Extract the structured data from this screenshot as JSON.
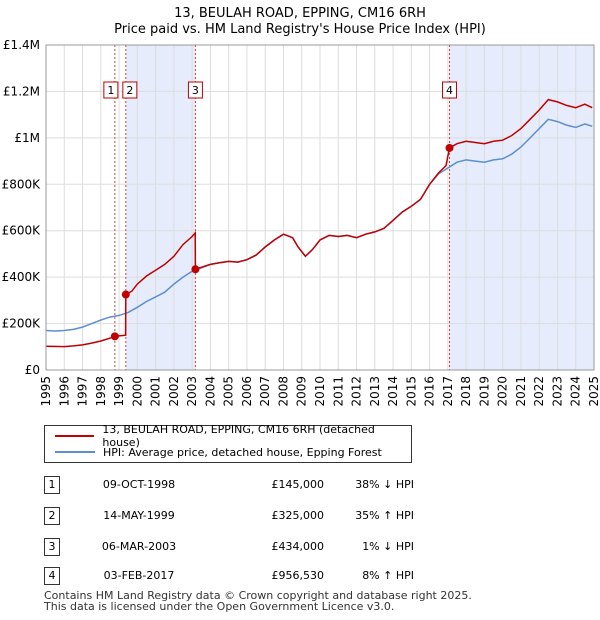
{
  "title": "13, BEULAH ROAD, EPPING, CM16 6RH",
  "subtitle": "Price paid vs. HM Land Registry's House Price Index (HPI)",
  "legend": {
    "property": "13, BEULAH ROAD, EPPING, CM16 6RH (detached house)",
    "hpi": "HPI: Average price, detached house, Epping Forest"
  },
  "colors": {
    "property": "#c00000",
    "hpi": "#5b8fd0",
    "shade": "#e6ecfb"
  },
  "transactions": [
    {
      "num": "1",
      "date": "09-OCT-1998",
      "price": "£145,000",
      "hpi": "38% ↓ HPI"
    },
    {
      "num": "2",
      "date": "14-MAY-1999",
      "price": "£325,000",
      "hpi": "35% ↑ HPI"
    },
    {
      "num": "3",
      "date": "06-MAR-2003",
      "price": "£434,000",
      "hpi": "1% ↓ HPI"
    },
    {
      "num": "4",
      "date": "03-FEB-2017",
      "price": "£956,530",
      "hpi": "8% ↑ HPI"
    }
  ],
  "footer": {
    "line1": "Contains HM Land Registry data © Crown copyright and database right 2025.",
    "line2": "This data is licensed under the Open Government Licence v3.0."
  },
  "chart_data": {
    "type": "line",
    "xlim": [
      1995,
      2025
    ],
    "ylim": [
      0,
      1400000
    ],
    "y_ticks": [
      {
        "value": 0,
        "label": "£0"
      },
      {
        "value": 200000,
        "label": "£200K"
      },
      {
        "value": 400000,
        "label": "£400K"
      },
      {
        "value": 600000,
        "label": "£600K"
      },
      {
        "value": 800000,
        "label": "£800K"
      },
      {
        "value": 1000000,
        "label": "£1M"
      },
      {
        "value": 1200000,
        "label": "£1.2M"
      },
      {
        "value": 1400000,
        "label": "£1.4M"
      }
    ],
    "x_ticks": [
      "1995",
      "1996",
      "1997",
      "1998",
      "1999",
      "2000",
      "2001",
      "2002",
      "2003",
      "2004",
      "2005",
      "2006",
      "2007",
      "2008",
      "2009",
      "2010",
      "2011",
      "2012",
      "2013",
      "2014",
      "2015",
      "2016",
      "2017",
      "2018",
      "2019",
      "2020",
      "2021",
      "2022",
      "2023",
      "2024",
      "2025"
    ],
    "shaded_ranges": [
      [
        1999.37,
        2003.18
      ],
      [
        2017.09,
        2025
      ]
    ],
    "markers": [
      {
        "label": "1",
        "x": 1998.77,
        "y": 145000
      },
      {
        "label": "2",
        "x": 1999.37,
        "y": 325000
      },
      {
        "label": "3",
        "x": 2003.18,
        "y": 434000
      },
      {
        "label": "4",
        "x": 2017.09,
        "y": 956530
      }
    ],
    "series": [
      {
        "name": "13, BEULAH ROAD, EPPING, CM16 6RH (detached house)",
        "points": [
          [
            1995.0,
            102000
          ],
          [
            1996.0,
            101000
          ],
          [
            1996.5,
            104000
          ],
          [
            1997.0,
            108000
          ],
          [
            1997.5,
            116000
          ],
          [
            1998.0,
            125000
          ],
          [
            1998.5,
            137000
          ],
          [
            1998.77,
            145000
          ],
          [
            1999.0,
            147000
          ],
          [
            1999.36,
            150000
          ],
          [
            1999.37,
            325000
          ],
          [
            1999.7,
            340000
          ],
          [
            2000.0,
            370000
          ],
          [
            2000.5,
            405000
          ],
          [
            2001.0,
            430000
          ],
          [
            2001.5,
            455000
          ],
          [
            2002.0,
            490000
          ],
          [
            2002.5,
            540000
          ],
          [
            2003.0,
            575000
          ],
          [
            2003.17,
            590000
          ],
          [
            2003.18,
            434000
          ],
          [
            2003.6,
            445000
          ],
          [
            2004.0,
            455000
          ],
          [
            2004.5,
            462000
          ],
          [
            2005.0,
            468000
          ],
          [
            2005.5,
            465000
          ],
          [
            2006.0,
            475000
          ],
          [
            2006.5,
            495000
          ],
          [
            2007.0,
            530000
          ],
          [
            2007.5,
            560000
          ],
          [
            2008.0,
            585000
          ],
          [
            2008.5,
            570000
          ],
          [
            2008.8,
            530000
          ],
          [
            2009.2,
            490000
          ],
          [
            2009.6,
            520000
          ],
          [
            2010.0,
            560000
          ],
          [
            2010.5,
            580000
          ],
          [
            2011.0,
            575000
          ],
          [
            2011.5,
            580000
          ],
          [
            2012.0,
            570000
          ],
          [
            2012.5,
            585000
          ],
          [
            2013.0,
            595000
          ],
          [
            2013.5,
            610000
          ],
          [
            2014.0,
            645000
          ],
          [
            2014.5,
            680000
          ],
          [
            2015.0,
            705000
          ],
          [
            2015.5,
            735000
          ],
          [
            2016.0,
            800000
          ],
          [
            2016.5,
            850000
          ],
          [
            2016.9,
            880000
          ],
          [
            2017.09,
            956530
          ],
          [
            2017.5,
            975000
          ],
          [
            2018.0,
            985000
          ],
          [
            2018.5,
            980000
          ],
          [
            2019.0,
            975000
          ],
          [
            2019.5,
            985000
          ],
          [
            2020.0,
            990000
          ],
          [
            2020.5,
            1010000
          ],
          [
            2021.0,
            1040000
          ],
          [
            2021.5,
            1080000
          ],
          [
            2022.0,
            1120000
          ],
          [
            2022.5,
            1165000
          ],
          [
            2023.0,
            1155000
          ],
          [
            2023.5,
            1140000
          ],
          [
            2024.0,
            1130000
          ],
          [
            2024.5,
            1145000
          ],
          [
            2024.9,
            1130000
          ]
        ]
      },
      {
        "name": "HPI: Average price, detached house, Epping Forest",
        "points": [
          [
            1995.0,
            170000
          ],
          [
            1995.5,
            168000
          ],
          [
            1996.0,
            170000
          ],
          [
            1996.5,
            175000
          ],
          [
            1997.0,
            185000
          ],
          [
            1997.5,
            200000
          ],
          [
            1998.0,
            215000
          ],
          [
            1998.5,
            228000
          ],
          [
            1999.0,
            235000
          ],
          [
            1999.5,
            248000
          ],
          [
            2000.0,
            270000
          ],
          [
            2000.5,
            295000
          ],
          [
            2001.0,
            315000
          ],
          [
            2001.5,
            335000
          ],
          [
            2002.0,
            370000
          ],
          [
            2002.5,
            400000
          ],
          [
            2003.0,
            425000
          ],
          [
            2003.5,
            440000
          ],
          [
            2004.0,
            455000
          ],
          [
            2004.5,
            462000
          ],
          [
            2005.0,
            468000
          ],
          [
            2005.5,
            465000
          ],
          [
            2006.0,
            475000
          ],
          [
            2006.5,
            495000
          ],
          [
            2007.0,
            530000
          ],
          [
            2007.5,
            560000
          ],
          [
            2008.0,
            585000
          ],
          [
            2008.5,
            570000
          ],
          [
            2008.8,
            530000
          ],
          [
            2009.2,
            490000
          ],
          [
            2009.6,
            520000
          ],
          [
            2010.0,
            560000
          ],
          [
            2010.5,
            580000
          ],
          [
            2011.0,
            575000
          ],
          [
            2011.5,
            580000
          ],
          [
            2012.0,
            570000
          ],
          [
            2012.5,
            585000
          ],
          [
            2013.0,
            595000
          ],
          [
            2013.5,
            610000
          ],
          [
            2014.0,
            645000
          ],
          [
            2014.5,
            680000
          ],
          [
            2015.0,
            705000
          ],
          [
            2015.5,
            735000
          ],
          [
            2016.0,
            800000
          ],
          [
            2016.5,
            845000
          ],
          [
            2017.0,
            870000
          ],
          [
            2017.5,
            895000
          ],
          [
            2018.0,
            905000
          ],
          [
            2018.5,
            900000
          ],
          [
            2019.0,
            895000
          ],
          [
            2019.5,
            905000
          ],
          [
            2020.0,
            910000
          ],
          [
            2020.5,
            930000
          ],
          [
            2021.0,
            960000
          ],
          [
            2021.5,
            1000000
          ],
          [
            2022.0,
            1040000
          ],
          [
            2022.5,
            1080000
          ],
          [
            2023.0,
            1070000
          ],
          [
            2023.5,
            1055000
          ],
          [
            2024.0,
            1045000
          ],
          [
            2024.5,
            1060000
          ],
          [
            2024.9,
            1050000
          ]
        ]
      }
    ]
  }
}
